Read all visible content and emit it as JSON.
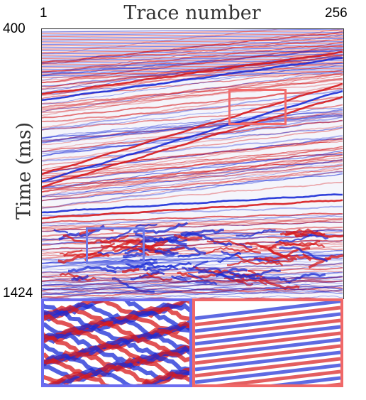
{
  "axes": {
    "x_label": "Trace number",
    "y_label": "Time (ms)",
    "x_min": "1",
    "x_max": "256",
    "y_min": "400",
    "y_max": "1424"
  },
  "colors": {
    "positive_amplitude": "#d7191c",
    "negative_amplitude": "#1a2bd6",
    "zero_amplitude": "#ffffff",
    "highlight_box_red": "#f26b6b",
    "highlight_box_blue": "#6f7ae8"
  },
  "colormap": "red-white-blue seismic",
  "highlight_boxes": [
    "red rectangle (upper right)",
    "blue rectangle (lower left)"
  ],
  "insets": [
    "zoom of blue box region",
    "zoom of red box region"
  ]
}
